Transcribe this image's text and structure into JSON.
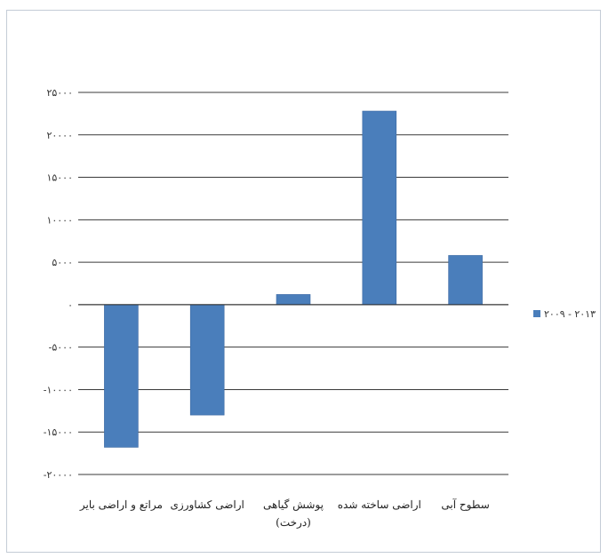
{
  "chart_data": {
    "type": "bar",
    "categories": [
      [
        "مراتع و اراضی بایر"
      ],
      [
        "اراضی کشاورزی"
      ],
      [
        "پوشش گیاهی",
        "(درخت)"
      ],
      [
        "اراضی ساخته شده"
      ],
      [
        "سطوح آبی"
      ]
    ],
    "series": [
      {
        "name": "۲۰۰۹ - ۲۰۱۳",
        "color": "#4a7ebb",
        "values": [
          -16800,
          -13000,
          1200,
          22800,
          5800
        ]
      }
    ],
    "ylim": [
      -20000,
      25000
    ],
    "yticks": [
      {
        "value": 25000,
        "label": "۲۵۰۰۰"
      },
      {
        "value": 20000,
        "label": "۲۰۰۰۰"
      },
      {
        "value": 15000,
        "label": "۱۵۰۰۰"
      },
      {
        "value": 10000,
        "label": "۱۰۰۰۰"
      },
      {
        "value": 5000,
        "label": "۵۰۰۰"
      },
      {
        "value": 0,
        "label": "۰"
      },
      {
        "value": -5000,
        "label": "-۵۰۰۰"
      },
      {
        "value": -10000,
        "label": "-۱۰۰۰۰"
      },
      {
        "value": -15000,
        "label": "-۱۵۰۰۰"
      },
      {
        "value": -20000,
        "label": "-۲۰۰۰۰"
      }
    ],
    "grid": true,
    "legend_position": "right"
  }
}
